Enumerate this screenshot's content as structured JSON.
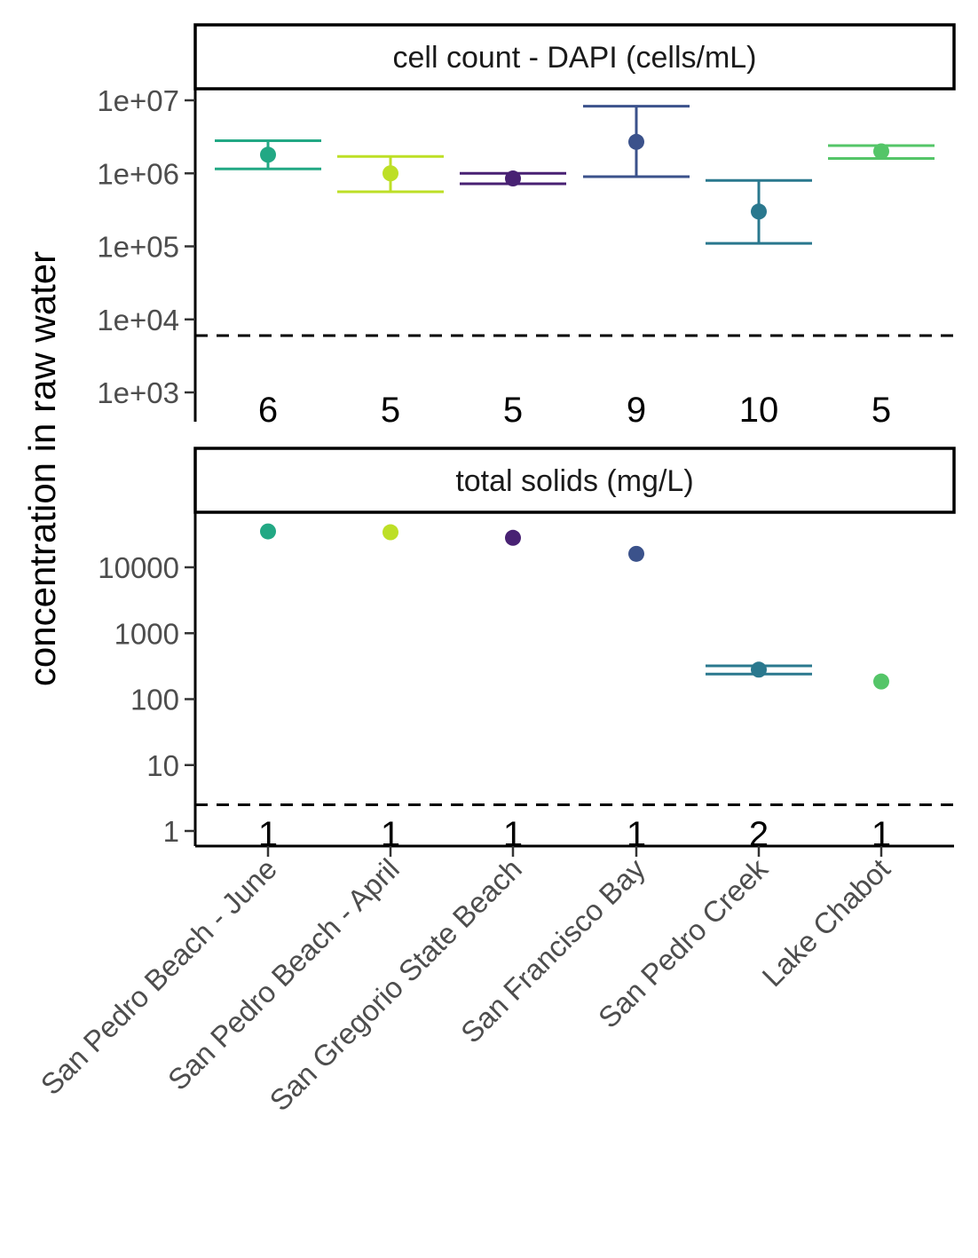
{
  "chart_data": {
    "type": "scatter",
    "ylabel": "concentration in raw water",
    "categories": [
      "San Pedro Beach - June",
      "San Pedro Beach - April",
      "San Gregorio State Beach",
      "San Francisco Bay",
      "San Pedro Creek",
      "Lake Chabot"
    ],
    "colors": [
      "#22a884",
      "#bddf26",
      "#482173",
      "#3b528b",
      "#2a788e",
      "#54c568"
    ],
    "panels": [
      {
        "title": "cell count - DAPI (cells/mL)",
        "scale": "log10",
        "ylim": [
          500,
          15000000
        ],
        "yticks": [
          1000,
          10000,
          100000,
          1000000,
          10000000
        ],
        "ytick_labels": [
          "1e+03",
          "1e+04",
          "1e+05",
          "1e+06",
          "1e+07"
        ],
        "detection_limit": 6000,
        "counts": [
          "6",
          "5",
          "5",
          "9",
          "10",
          "5"
        ],
        "points": [
          {
            "y": 1800000,
            "lo": 1150000,
            "hi": 2800000
          },
          {
            "y": 1000000,
            "lo": 560000,
            "hi": 1700000
          },
          {
            "y": 850000,
            "lo": 720000,
            "hi": 1000000
          },
          {
            "y": 2700000,
            "lo": 900000,
            "hi": 8300000
          },
          {
            "y": 300000,
            "lo": 110000,
            "hi": 800000
          },
          {
            "y": 2000000,
            "lo": 1600000,
            "hi": 2400000
          }
        ]
      },
      {
        "title": "total solids (mg/L)",
        "scale": "log10",
        "ylim": [
          0.7,
          60000
        ],
        "yticks": [
          1,
          10,
          100,
          1000,
          10000
        ],
        "ytick_labels": [
          "1",
          "10",
          "100",
          "1000",
          "10000"
        ],
        "detection_limit": 2.5,
        "counts": [
          "1",
          "1",
          "1",
          "1",
          "2",
          "1"
        ],
        "points": [
          {
            "y": 35000
          },
          {
            "y": 34000
          },
          {
            "y": 28000
          },
          {
            "y": 16000
          },
          {
            "y": 280,
            "lo": 240,
            "hi": 320
          },
          {
            "y": 185
          }
        ]
      }
    ]
  }
}
